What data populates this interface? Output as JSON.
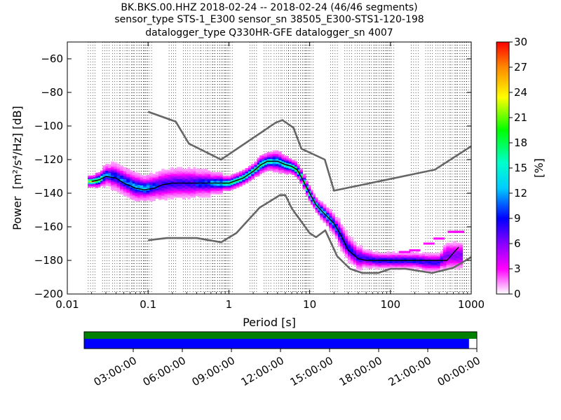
{
  "title_lines": [
    "BK.BKS.00.HHZ   2018-02-24 -- 2018-02-24  (46/46 segments)",
    "sensor_type STS-1_E300 sensor_sn 38505_E300-STS1-120-198",
    "datalogger_type Q330HR-GFE datalogger_sn 4007"
  ],
  "chart_data": {
    "type": "heatmap",
    "subtype": "probabilistic power spectral density",
    "xlabel": "Period [s]",
    "ylabel_text": "Power",
    "ylabel_units": "[m²/s⁴/Hz] [dB]",
    "x_scale": "log",
    "xlim": [
      0.01,
      1000
    ],
    "ylim": [
      -200,
      -50
    ],
    "x_ticks": [
      0.01,
      0.1,
      1,
      10,
      100,
      1000
    ],
    "x_tick_labels": [
      "0.01",
      "0.1",
      "1",
      "10",
      "100",
      "1000"
    ],
    "y_ticks": [
      -200,
      -180,
      -160,
      -140,
      -120,
      -100,
      -80,
      -60
    ],
    "y_tick_labels": [
      "−200",
      "−180",
      "−160",
      "−140",
      "−120",
      "−100",
      "−80",
      "−60"
    ],
    "grid": "dotted vertical lines at log subdivisions",
    "colorbar": {
      "label": "[%]",
      "range": [
        0,
        30
      ],
      "ticks": [
        0,
        3,
        6,
        9,
        12,
        15,
        18,
        21,
        24,
        27,
        30
      ],
      "tick_labels": [
        "0",
        "3",
        "6",
        "9",
        "12",
        "15",
        "18",
        "21",
        "24",
        "27",
        "30"
      ],
      "colormap": "pqlx"
    },
    "mode_curve": {
      "period": [
        0.02,
        0.025,
        0.03,
        0.04,
        0.05,
        0.07,
        0.09,
        0.12,
        0.15,
        0.2,
        0.3,
        0.5,
        0.7,
        1.0,
        1.5,
        2.0,
        2.5,
        3.0,
        4.0,
        5.0,
        6.0,
        7.0,
        8.0,
        10.0,
        12.0,
        15.0,
        20.0,
        25.0,
        30.0,
        40.0,
        50.0,
        70.0,
        100.0,
        150.0,
        200.0,
        300.0,
        400.0,
        500.0,
        700.0
      ],
      "power_db": [
        -133,
        -132,
        -130,
        -131,
        -134,
        -137,
        -138,
        -137,
        -135,
        -134,
        -134,
        -134,
        -134,
        -134,
        -131,
        -127,
        -123,
        -121,
        -121,
        -123,
        -124,
        -126,
        -131,
        -140,
        -147,
        -152,
        -158,
        -166,
        -174,
        -179,
        -180,
        -180,
        -180,
        -180,
        -180,
        -180,
        -180,
        -180,
        -172
      ]
    },
    "heat_columns": [
      {
        "period": 0.02,
        "center": -133,
        "spread": 1.5,
        "pct": 24
      },
      {
        "period": 0.025,
        "center": -132,
        "spread": 2,
        "pct": 20
      },
      {
        "period": 0.03,
        "center": -129,
        "spread": 3,
        "pct": 12
      },
      {
        "period": 0.04,
        "center": -130,
        "spread": 4,
        "pct": 10
      },
      {
        "period": 0.05,
        "center": -133,
        "spread": 4,
        "pct": 11
      },
      {
        "period": 0.07,
        "center": -136,
        "spread": 4,
        "pct": 12
      },
      {
        "period": 0.09,
        "center": -137,
        "spread": 3.5,
        "pct": 13
      },
      {
        "period": 0.12,
        "center": -136,
        "spread": 4,
        "pct": 10
      },
      {
        "period": 0.15,
        "center": -135,
        "spread": 5,
        "pct": 8
      },
      {
        "period": 0.2,
        "center": -134,
        "spread": 5,
        "pct": 8
      },
      {
        "period": 0.3,
        "center": -134,
        "spread": 5,
        "pct": 8
      },
      {
        "period": 0.5,
        "center": -134,
        "spread": 4,
        "pct": 10
      },
      {
        "period": 0.7,
        "center": -134,
        "spread": 3,
        "pct": 13
      },
      {
        "period": 1.0,
        "center": -134,
        "spread": 2,
        "pct": 18
      },
      {
        "period": 1.5,
        "center": -131,
        "spread": 2,
        "pct": 18
      },
      {
        "period": 2.0,
        "center": -127,
        "spread": 2,
        "pct": 18
      },
      {
        "period": 2.5,
        "center": -123,
        "spread": 2.5,
        "pct": 18
      },
      {
        "period": 3.0,
        "center": -121,
        "spread": 2.5,
        "pct": 16
      },
      {
        "period": 4.0,
        "center": -121,
        "spread": 3,
        "pct": 14
      },
      {
        "period": 5.0,
        "center": -123,
        "spread": 2.5,
        "pct": 16
      },
      {
        "period": 6.0,
        "center": -124,
        "spread": 2,
        "pct": 18
      },
      {
        "period": 7.0,
        "center": -126,
        "spread": 2,
        "pct": 20
      },
      {
        "period": 8.0,
        "center": -131,
        "spread": 2,
        "pct": 18
      },
      {
        "period": 10.0,
        "center": -140,
        "spread": 2,
        "pct": 18
      },
      {
        "period": 12.0,
        "center": -147,
        "spread": 2,
        "pct": 16
      },
      {
        "period": 15.0,
        "center": -152,
        "spread": 2.5,
        "pct": 14
      },
      {
        "period": 20.0,
        "center": -158,
        "spread": 3,
        "pct": 12
      },
      {
        "period": 25.0,
        "center": -166,
        "spread": 4,
        "pct": 10
      },
      {
        "period": 30.0,
        "center": -173,
        "spread": 4,
        "pct": 9
      },
      {
        "period": 40.0,
        "center": -178,
        "spread": 4,
        "pct": 8
      },
      {
        "period": 50.0,
        "center": -179,
        "spread": 3,
        "pct": 8
      },
      {
        "period": 70.0,
        "center": -180,
        "spread": 2.5,
        "pct": 9
      },
      {
        "period": 100.0,
        "center": -180,
        "spread": 2.5,
        "pct": 9
      },
      {
        "period": 150.0,
        "center": -180,
        "spread": 2.5,
        "pct": 9
      },
      {
        "period": 200.0,
        "center": -180,
        "spread": 2.5,
        "pct": 9
      },
      {
        "period": 300.0,
        "center": -181,
        "spread": 3,
        "pct": 8
      },
      {
        "period": 400.0,
        "center": -181,
        "spread": 3,
        "pct": 8
      },
      {
        "period": 500.0,
        "center": -177,
        "spread": 5,
        "pct": 6
      },
      {
        "period": 700.0,
        "center": -177,
        "spread": 5,
        "pct": 6
      }
    ],
    "outlier_cells": [
      {
        "period": 150,
        "power_db": -175,
        "pct": 3
      },
      {
        "period": 200,
        "power_db": -174,
        "pct": 3
      },
      {
        "period": 300,
        "power_db": -170,
        "pct": 3
      },
      {
        "period": 400,
        "power_db": -167,
        "pct": 3
      },
      {
        "period": 600,
        "power_db": -163,
        "pct": 3
      },
      {
        "period": 700,
        "power_db": -163,
        "pct": 3
      }
    ],
    "nhnm": {
      "period": [
        0.1,
        0.22,
        0.32,
        0.8,
        3.8,
        4.6,
        6.3,
        7.9,
        15.4,
        20.0,
        354.8,
        1000
      ],
      "power_db": [
        -91.5,
        -97.4,
        -110.5,
        -120.0,
        -98.0,
        -96.5,
        -101.0,
        -113.5,
        -120.0,
        -138.5,
        -126.0,
        -112.0
      ]
    },
    "nlnm": {
      "period": [
        0.1,
        0.17,
        0.4,
        0.8,
        1.24,
        2.4,
        4.3,
        5.0,
        6.0,
        10.0,
        12.0,
        15.6,
        21.9,
        31.6,
        45.0,
        70.0,
        101.0,
        154.0,
        328.0,
        600.0,
        1000
      ],
      "power_db": [
        -168.0,
        -166.7,
        -166.7,
        -169.2,
        -163.7,
        -148.6,
        -141.1,
        -141.1,
        -149.0,
        -163.8,
        -166.2,
        -162.1,
        -177.5,
        -185.0,
        -187.5,
        -187.5,
        -185.0,
        -185.0,
        -187.5,
        -184.4,
        -178.0
      ]
    }
  },
  "coverage": {
    "time_tick_labels": [
      "03:00:00",
      "06:00:00",
      "09:00:00",
      "12:00:00",
      "15:00:00",
      "18:00:00",
      "21:00:00",
      "00:00:00"
    ],
    "data_fraction": 0.98,
    "colors": {
      "coverage_top": "#008000",
      "data_used": "#0000ff",
      "missing": "#ffffff"
    }
  },
  "colors": {
    "model_curves": "#666666",
    "mode_line": "#000000",
    "axes": "#000000"
  }
}
